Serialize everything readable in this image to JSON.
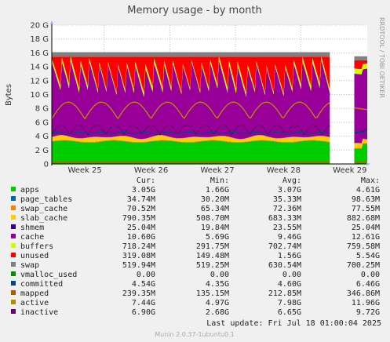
{
  "chart_data": {
    "type": "area",
    "title": "Memory usage - by month",
    "ylabel": "Bytes",
    "side_label": "RRDTOOL / TOBI OETIKER",
    "ylim": [
      0,
      20
    ],
    "yticks": [
      "0",
      "2 G",
      "4 G",
      "6 G",
      "8 G",
      "10 G",
      "12 G",
      "14 G",
      "16 G",
      "18 G",
      "20 G"
    ],
    "xticks": [
      "Week 25",
      "Week 26",
      "Week 27",
      "Week 28",
      "Week 29"
    ],
    "gap": [
      0.883,
      0.956
    ],
    "columns": [
      "Cur:",
      "Min:",
      "Avg:",
      "Max:"
    ],
    "series": [
      {
        "name": "apps",
        "color": "#00cc00",
        "values": [
          "3.05G",
          "1.66G",
          "3.07G",
          "4.61G"
        ]
      },
      {
        "name": "page_tables",
        "color": "#0066b3",
        "values": [
          "34.74M",
          "30.20M",
          "35.33M",
          "98.63M"
        ]
      },
      {
        "name": "swap_cache",
        "color": "#ff8000",
        "values": [
          "70.52M",
          "65.34M",
          "72.36M",
          "77.55M"
        ]
      },
      {
        "name": "slab_cache",
        "color": "#ffcc00",
        "values": [
          "790.35M",
          "508.70M",
          "683.33M",
          "882.68M"
        ]
      },
      {
        "name": "shmem",
        "color": "#330099",
        "values": [
          "25.04M",
          "19.84M",
          "23.55M",
          "25.04M"
        ]
      },
      {
        "name": "cache",
        "color": "#990099",
        "values": [
          "10.60G",
          "5.69G",
          "9.46G",
          "12.61G"
        ]
      },
      {
        "name": "buffers",
        "color": "#ccff00",
        "values": [
          "718.24M",
          "291.75M",
          "702.74M",
          "759.58M"
        ]
      },
      {
        "name": "unused",
        "color": "#ff0000",
        "values": [
          "319.08M",
          "149.48M",
          "1.56G",
          "5.54G"
        ]
      },
      {
        "name": "swap",
        "color": "#808080",
        "values": [
          "519.94M",
          "519.25M",
          "630.54M",
          "700.25M"
        ]
      },
      {
        "name": "vmalloc_used",
        "color": "#008f00",
        "values": [
          "0.00",
          "0.00",
          "0.00",
          "0.00"
        ]
      },
      {
        "name": "committed",
        "color": "#00487d",
        "values": [
          "4.54G",
          "4.35G",
          "4.60G",
          "6.46G"
        ]
      },
      {
        "name": "mapped",
        "color": "#b35a00",
        "values": [
          "239.35M",
          "135.15M",
          "212.85M",
          "346.86M"
        ]
      },
      {
        "name": "active",
        "color": "#b38f00",
        "values": [
          "7.44G",
          "4.97G",
          "7.98G",
          "11.96G"
        ]
      },
      {
        "name": "inactive",
        "color": "#6b006b",
        "values": [
          "6.90G",
          "2.68G",
          "6.65G",
          "9.72G"
        ]
      }
    ],
    "last_update": "Last update: Fri Jul 18 01:00:04 2025",
    "footer": "Munin 2.0.37-1ubuntu0.1"
  }
}
